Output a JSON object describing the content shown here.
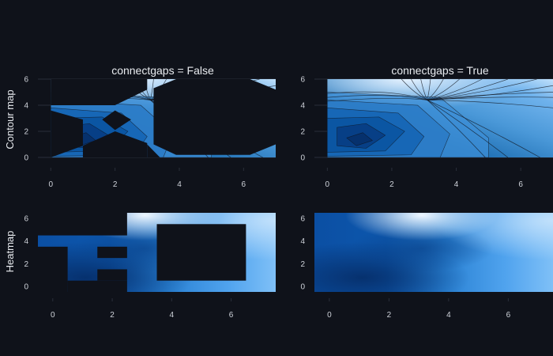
{
  "chart_data": [
    {
      "type": "contour",
      "panel": "contour-gaps",
      "subplot_title": "connectgaps = False",
      "row_label": "Contour map",
      "connectgaps": false,
      "x": [
        0,
        1,
        2,
        3,
        4,
        5,
        6,
        7
      ],
      "y": [
        0,
        1,
        2,
        3,
        4,
        5,
        6
      ],
      "xlim": [
        -0.4,
        7
      ],
      "ylim": [
        -0.3,
        6
      ],
      "x_ticks": [
        "0",
        "2",
        "4",
        "6"
      ],
      "y_ticks": [
        "0",
        "2",
        "4",
        "6"
      ],
      "colorscale": [
        "#08306b",
        "#08519c",
        "#2171b5",
        "#4292c6",
        "#6baed6",
        "#9ecae1",
        "#deebf7"
      ]
    },
    {
      "type": "contour",
      "panel": "contour-filled",
      "subplot_title": "connectgaps = True",
      "connectgaps": true,
      "x": [
        0,
        1,
        2,
        3,
        4,
        5,
        6,
        7
      ],
      "y": [
        0,
        1,
        2,
        3,
        4,
        5,
        6
      ],
      "xlim": [
        -0.4,
        7
      ],
      "ylim": [
        -0.3,
        6
      ],
      "x_ticks": [
        "0",
        "2",
        "4",
        "6"
      ],
      "y_ticks": [
        "0",
        "2",
        "4",
        "6"
      ]
    },
    {
      "type": "heatmap",
      "panel": "heatmap-gaps",
      "row_label": "Heatmap",
      "connectgaps": false,
      "x": [
        0,
        1,
        2,
        3,
        4,
        5,
        6,
        7
      ],
      "y": [
        0,
        1,
        2,
        3,
        4,
        5,
        6
      ],
      "xlim": [
        -0.5,
        7.5
      ],
      "ylim": [
        -0.5,
        6.5
      ],
      "x_ticks": [
        "0",
        "2",
        "4",
        "6"
      ],
      "y_ticks": [
        "0",
        "2",
        "4",
        "6"
      ]
    },
    {
      "type": "heatmap",
      "panel": "heatmap-filled",
      "connectgaps": true,
      "x": [
        0,
        1,
        2,
        3,
        4,
        5,
        6,
        7
      ],
      "y": [
        0,
        1,
        2,
        3,
        4,
        5,
        6
      ],
      "xlim": [
        -0.5,
        7.5
      ],
      "ylim": [
        -0.5,
        6.5
      ],
      "x_ticks": [
        "0",
        "2",
        "4",
        "6"
      ],
      "y_ticks": [
        "0",
        "2",
        "4",
        "6"
      ]
    }
  ]
}
